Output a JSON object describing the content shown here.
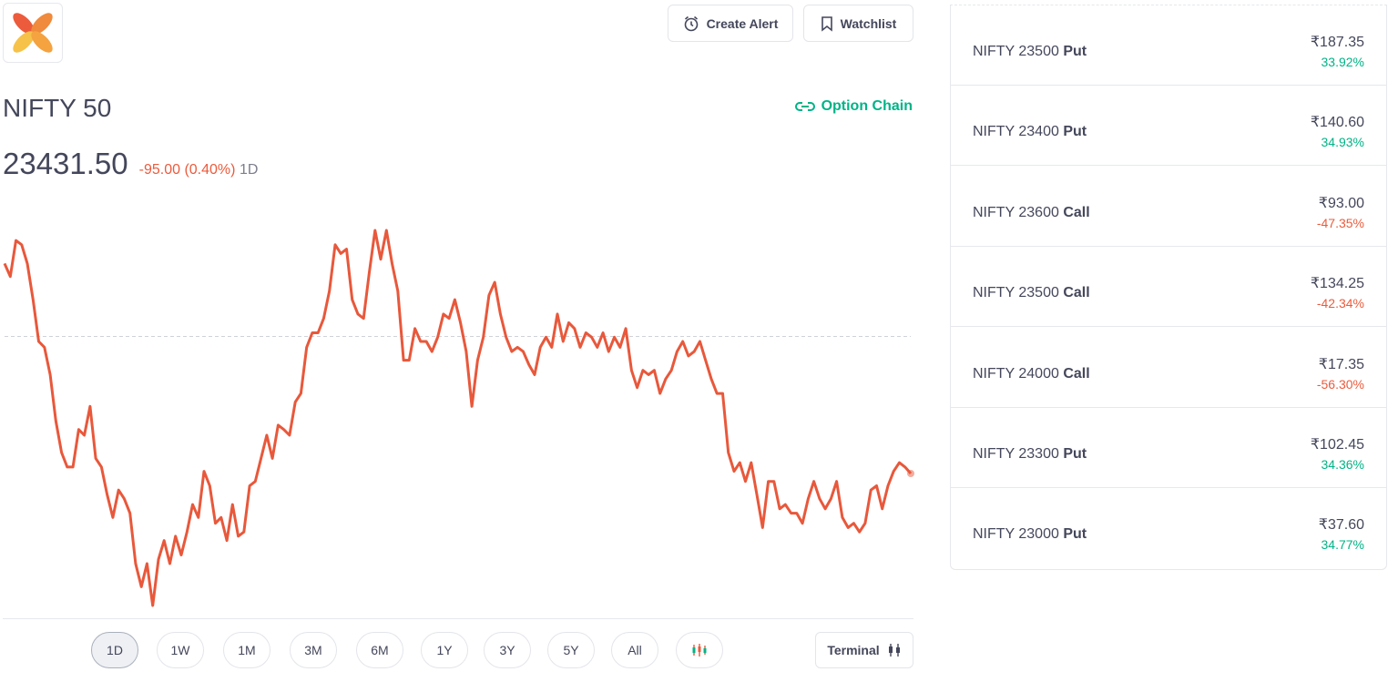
{
  "header": {
    "buttons": [
      "Create Alert",
      "Watchlist"
    ]
  },
  "instrument": {
    "name": "NIFTY 50",
    "link": "Option Chain",
    "price": "23431.50",
    "change": "-95.00 (0.40%)",
    "period": "1D"
  },
  "chart": {
    "type": "line",
    "color": "#e8583b",
    "previous_close": 23526.5,
    "values": [
      23577,
      23568,
      23593,
      23590,
      23577,
      23552,
      23523,
      23519,
      23500,
      23468,
      23446,
      23436,
      23436,
      23462,
      23458,
      23478,
      23442,
      23436,
      23417,
      23401,
      23420,
      23414,
      23404,
      23369,
      23353,
      23369,
      23340,
      23372,
      23385,
      23369,
      23388,
      23375,
      23391,
      23410,
      23401,
      23433,
      23423,
      23397,
      23401,
      23385,
      23410,
      23388,
      23391,
      23423,
      23426,
      23442,
      23458,
      23442,
      23465,
      23462,
      23458,
      23481,
      23487,
      23519,
      23529,
      23529,
      23539,
      23558,
      23590,
      23584,
      23587,
      23552,
      23542,
      23539,
      23571,
      23600,
      23580,
      23600,
      23577,
      23558,
      23510,
      23510,
      23532,
      23523,
      23523,
      23516,
      23526,
      23542,
      23539,
      23552,
      23536,
      23516,
      23478,
      23510,
      23526,
      23555,
      23564,
      23542,
      23526,
      23516,
      23519,
      23516,
      23507,
      23500,
      23519,
      23526,
      23519,
      23542,
      23523,
      23536,
      23532,
      23519,
      23529,
      23526,
      23519,
      23529,
      23516,
      23526,
      23519,
      23532,
      23503,
      23491,
      23503,
      23500,
      23503,
      23487,
      23497,
      23503,
      23516,
      23523,
      23513,
      23516,
      23523,
      23510,
      23497,
      23487,
      23487,
      23446,
      23433,
      23439,
      23426,
      23439,
      23417,
      23394,
      23426,
      23426,
      23407,
      23410,
      23404,
      23404,
      23397,
      23414,
      23426,
      23414,
      23407,
      23414,
      23426,
      23401,
      23394,
      23397,
      23391,
      23397,
      23420,
      23423,
      23407,
      23423,
      23433,
      23439,
      23436,
      23431.5
    ]
  },
  "ranges": [
    "1D",
    "1W",
    "1M",
    "3M",
    "6M",
    "1Y",
    "3Y",
    "5Y",
    "All"
  ],
  "terminal": "Terminal",
  "options": [
    {
      "name": "NIFTY 23500",
      "kind": "Put",
      "price": "₹187.35",
      "change": "33.92%",
      "color": "#00b386"
    },
    {
      "name": "NIFTY 23400",
      "kind": "Put",
      "price": "₹140.60",
      "change": "34.93%",
      "color": "#00b386"
    },
    {
      "name": "NIFTY 23600",
      "kind": "Call",
      "price": "₹93.00",
      "change": "-47.35%",
      "color": "#eb5b3c"
    },
    {
      "name": "NIFTY 23500",
      "kind": "Call",
      "price": "₹134.25",
      "change": "-42.34%",
      "color": "#eb5b3c"
    },
    {
      "name": "NIFTY 24000",
      "kind": "Call",
      "price": "₹17.35",
      "change": "-56.30%",
      "color": "#eb5b3c"
    },
    {
      "name": "NIFTY 23300",
      "kind": "Put",
      "price": "₹102.45",
      "change": "34.36%",
      "color": "#00b386"
    },
    {
      "name": "NIFTY 23000",
      "kind": "Put",
      "price": "₹37.60",
      "change": "34.77%",
      "color": "#00b386"
    }
  ]
}
